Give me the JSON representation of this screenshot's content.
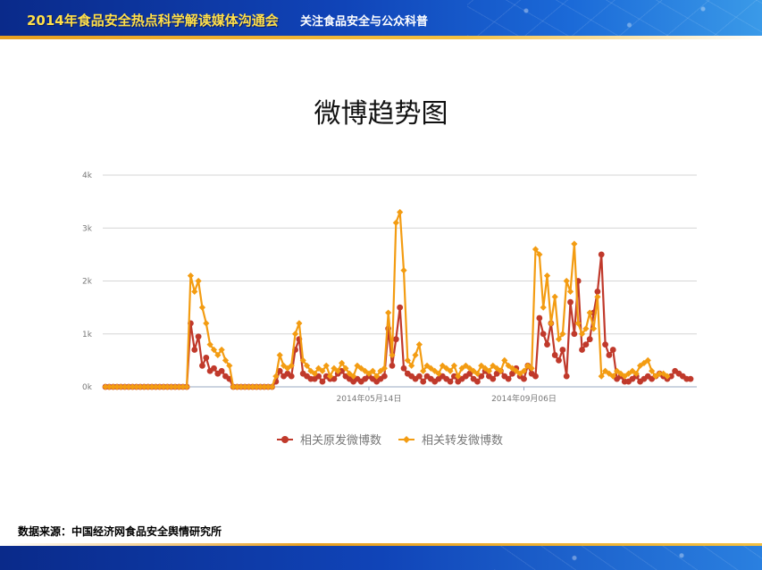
{
  "header": {
    "title": "2014年食品安全热点科学解读媒体沟通会",
    "subtitle": "关注食品安全与公众科普"
  },
  "page_title": "微博趋势图",
  "source_note": "数据来源：中国经济网食品安全舆情研究所",
  "colors": {
    "series_original": "#c0392b",
    "series_repost": "#f39c12",
    "grid": "#d6d6d6",
    "axis_text": "#777777",
    "banner_text": "#ffe04a"
  },
  "chart_data": {
    "type": "line",
    "title": "微博趋势图",
    "xlabel": "",
    "ylabel": "",
    "ylim": [
      0,
      4000
    ],
    "yticks": [
      0,
      1000,
      2000,
      3000,
      4000
    ],
    "yticklabels": [
      "0k",
      "1k",
      "2k",
      "3k",
      "4k"
    ],
    "xticklabels": [
      "2014年05月14日",
      "2014年09月06日"
    ],
    "xtick_index": [
      68,
      108
    ],
    "grid": true,
    "legend_position": "bottom",
    "series": [
      {
        "name": "相关原发微博数",
        "values": [
          0,
          0,
          0,
          0,
          0,
          0,
          0,
          0,
          0,
          0,
          0,
          0,
          0,
          0,
          0,
          0,
          0,
          0,
          0,
          0,
          0,
          0,
          1200,
          700,
          950,
          400,
          550,
          300,
          350,
          250,
          300,
          200,
          150,
          0,
          0,
          0,
          0,
          0,
          0,
          0,
          0,
          0,
          0,
          0,
          100,
          300,
          200,
          250,
          200,
          700,
          900,
          250,
          200,
          150,
          150,
          200,
          100,
          200,
          150,
          150,
          250,
          300,
          200,
          150,
          100,
          150,
          100,
          150,
          200,
          150,
          100,
          150,
          200,
          1100,
          400,
          900,
          1500,
          350,
          250,
          200,
          150,
          200,
          100,
          200,
          150,
          100,
          150,
          200,
          150,
          100,
          200,
          100,
          150,
          200,
          250,
          150,
          100,
          200,
          300,
          200,
          150,
          250,
          300,
          200,
          150,
          250,
          350,
          200,
          150,
          400,
          250,
          200,
          1300,
          1000,
          800,
          1200,
          600,
          500,
          700,
          200,
          1600,
          1000,
          2000,
          700,
          800,
          900,
          1400,
          1800,
          2500,
          800,
          600,
          700,
          150,
          200,
          100,
          100,
          150,
          200,
          100,
          150,
          200,
          150,
          200,
          250,
          200,
          150,
          200,
          300,
          250,
          200,
          150,
          150
        ]
      },
      {
        "name": "相关转发微博数",
        "values": [
          0,
          0,
          0,
          0,
          0,
          0,
          0,
          0,
          0,
          0,
          0,
          0,
          0,
          0,
          0,
          0,
          0,
          0,
          0,
          0,
          0,
          0,
          2100,
          1800,
          2000,
          1500,
          1200,
          800,
          700,
          600,
          700,
          500,
          400,
          0,
          0,
          0,
          0,
          0,
          0,
          0,
          0,
          0,
          0,
          0,
          200,
          600,
          400,
          350,
          400,
          1000,
          1200,
          500,
          400,
          300,
          250,
          350,
          300,
          400,
          200,
          350,
          300,
          450,
          350,
          250,
          200,
          400,
          350,
          300,
          250,
          300,
          200,
          300,
          350,
          1400,
          600,
          3100,
          3300,
          2200,
          500,
          400,
          600,
          800,
          300,
          400,
          350,
          300,
          250,
          400,
          350,
          300,
          400,
          200,
          350,
          400,
          350,
          300,
          250,
          400,
          350,
          300,
          400,
          350,
          300,
          500,
          400,
          350,
          300,
          250,
          300,
          400,
          350,
          2600,
          2500,
          1500,
          2100,
          1200,
          1700,
          900,
          1000,
          2000,
          1800,
          2700,
          1200,
          1000,
          1100,
          1400,
          1100,
          1700,
          200,
          300,
          250,
          200,
          300,
          250,
          200,
          250,
          300,
          250,
          400,
          450,
          500,
          300,
          200,
          250,
          250,
          200
        ]
      }
    ]
  }
}
